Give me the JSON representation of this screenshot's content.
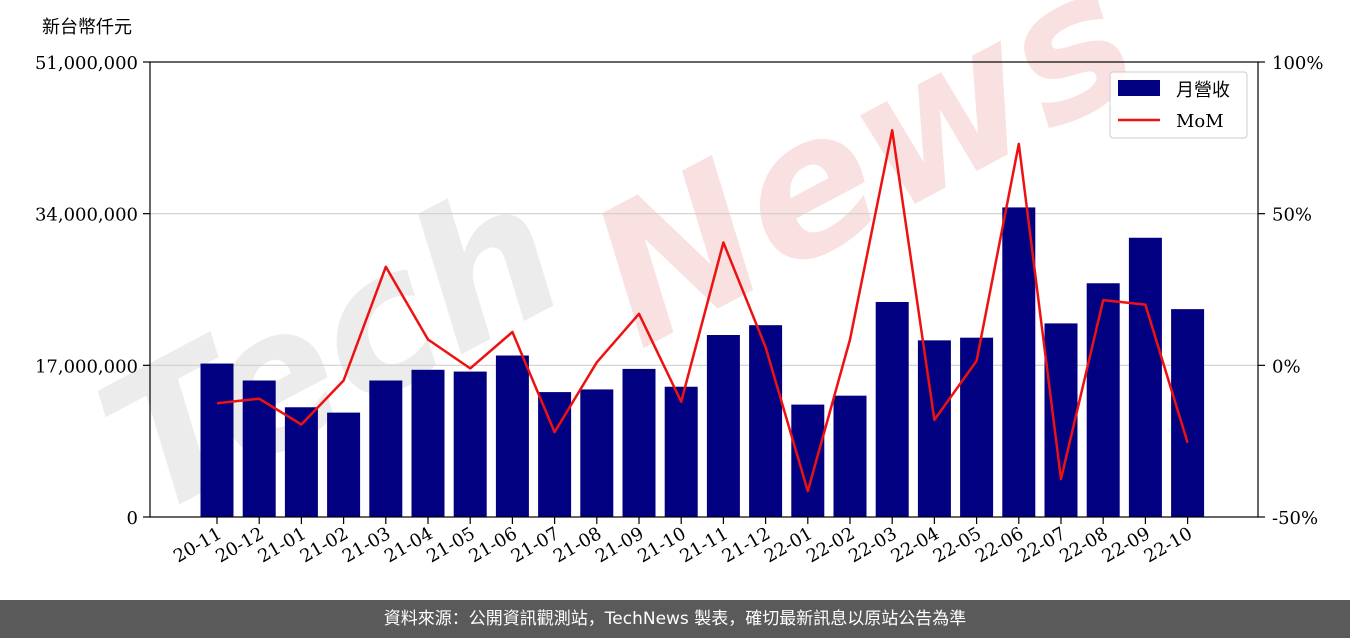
{
  "footer": {
    "text": "資料來源：公開資訊觀測站，TechNews 製表，確切最新訊息以原站公告為準"
  },
  "watermark": {
    "tech": "Tech",
    "news": "News"
  },
  "colors": {
    "bar": "#000080",
    "line": "#ee1111",
    "grid": "#d0d0d0",
    "footer_bg": "#5a5a5a"
  },
  "chart_data": {
    "type": "bar",
    "unit_label": "新台幣仟元",
    "categories": [
      "20-11",
      "20-12",
      "21-01",
      "21-02",
      "21-03",
      "21-04",
      "21-05",
      "21-06",
      "21-07",
      "21-08",
      "21-09",
      "21-10",
      "21-11",
      "21-12",
      "22-01",
      "22-02",
      "22-03",
      "22-04",
      "22-05",
      "22-06",
      "22-07",
      "22-08",
      "22-09",
      "22-10"
    ],
    "series": [
      {
        "name": "月營收",
        "axis": "left",
        "type": "bar",
        "values": [
          17200000,
          15300000,
          12300000,
          11700000,
          15300000,
          16500000,
          16300000,
          18100000,
          14000000,
          14300000,
          16600000,
          14600000,
          20400000,
          21500000,
          12600000,
          13600000,
          24100000,
          19800000,
          20100000,
          34700000,
          21700000,
          26200000,
          31300000,
          23300000
        ]
      },
      {
        "name": "MoM",
        "axis": "right",
        "type": "line",
        "values": [
          -12.5,
          -11,
          -19.5,
          -5,
          32.5,
          8.5,
          -1,
          11,
          -22,
          1,
          17,
          -12,
          40.5,
          6,
          -41.5,
          8.5,
          77.5,
          -18,
          1.5,
          73,
          -37.5,
          21.5,
          20,
          -25.5
        ]
      }
    ],
    "y_left": {
      "ylim": [
        0,
        51000000
      ],
      "ticks": [
        0,
        17000000,
        34000000,
        51000000
      ],
      "tick_labels": [
        "0",
        "17,000,000",
        "34,000,000",
        "51,000,000"
      ]
    },
    "y_right": {
      "ylim": [
        -50,
        100
      ],
      "ticks": [
        -50,
        0,
        50,
        100
      ],
      "tick_labels": [
        "-50%",
        "0%",
        "50%",
        "100%"
      ]
    },
    "grid": "horizontal",
    "legend": {
      "position": "upper-right",
      "entries": [
        "月營收",
        "MoM"
      ]
    }
  }
}
